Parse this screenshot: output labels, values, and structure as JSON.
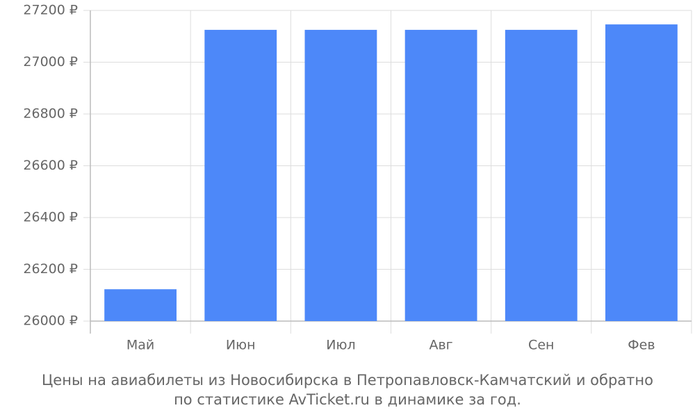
{
  "chart_data": {
    "type": "bar",
    "title": [
      "Цены на авиабилеты из Новосибирска в Петропавловск-Камчатский и обратно",
      "по статистике AvTicket.ru в динамике за год."
    ],
    "categories": [
      "Май",
      "Июн",
      "Июл",
      "Авг",
      "Сен",
      "Фев"
    ],
    "values": [
      26123,
      27125,
      27125,
      27125,
      27125,
      27146
    ],
    "color": "#4d88f9",
    "ylim": [
      26000,
      27200
    ],
    "yticks": [
      {
        "value": 26000,
        "label": "26000 ₽"
      },
      {
        "value": 26200,
        "label": "26200 ₽"
      },
      {
        "value": 26400,
        "label": "26400 ₽"
      },
      {
        "value": 26600,
        "label": "26600 ₽"
      },
      {
        "value": 26800,
        "label": "26800 ₽"
      },
      {
        "value": 27000,
        "label": "27000 ₽"
      },
      {
        "value": 27200,
        "label": "27200 ₽"
      }
    ],
    "grid": true
  }
}
